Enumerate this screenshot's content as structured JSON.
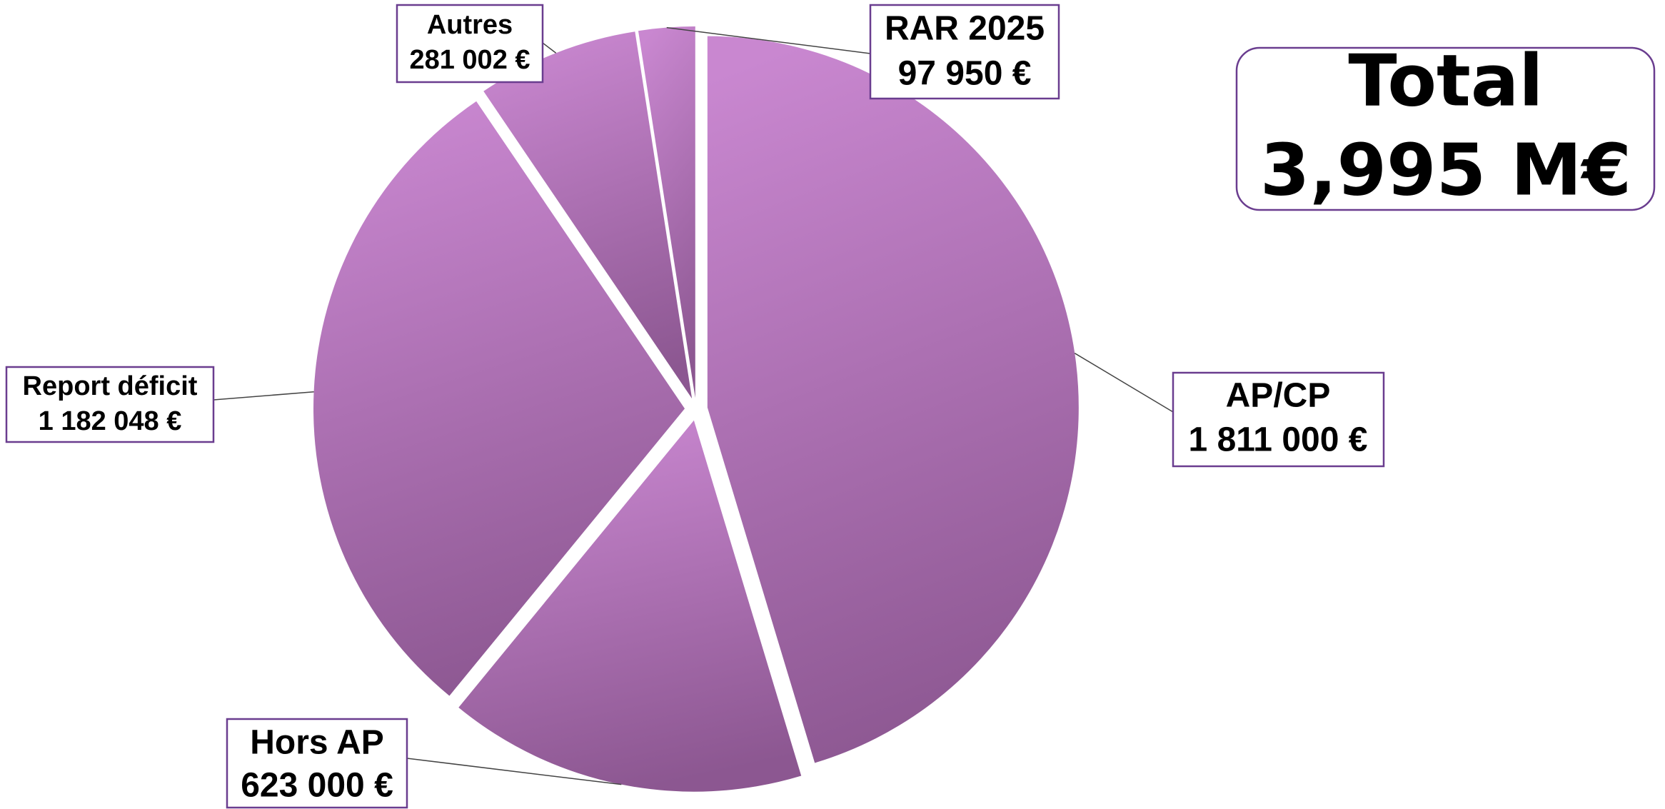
{
  "chart_data": {
    "type": "pie",
    "categories": [
      "AP/CP",
      "Hors AP",
      "Report déficit",
      "Autres",
      "RAR 2025"
    ],
    "values": [
      1811000,
      623000,
      1182048,
      281002,
      97950
    ],
    "value_labels": [
      "1 811 000 €",
      "623 000 €",
      "1 182 048 €",
      "281 002 €",
      "97 950 €"
    ],
    "colors": [
      "#c987d0",
      "#8c5791"
    ],
    "annotations": [
      "Total",
      "3,995 M€"
    ]
  }
}
